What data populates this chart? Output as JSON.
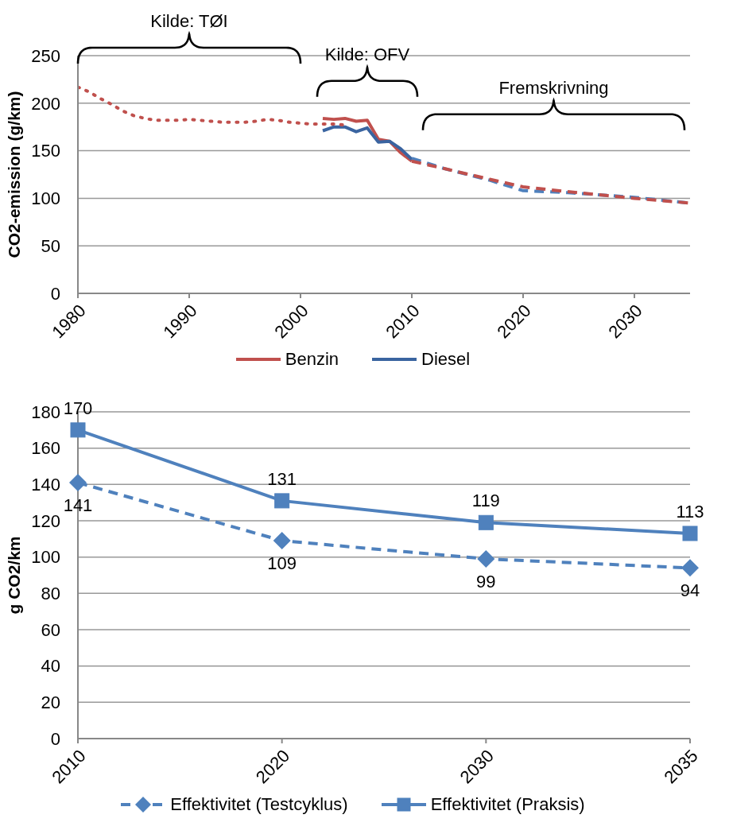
{
  "chart_data": [
    {
      "type": "line",
      "ylabel": "CO2-emission (g/km)",
      "xlim": [
        1980,
        2035
      ],
      "xticks": [
        1980,
        1990,
        2000,
        2010,
        2020,
        2030
      ],
      "ylim": [
        0,
        250
      ],
      "yticks": [
        0,
        50,
        100,
        150,
        200,
        250
      ],
      "grid": "y",
      "legend": "bottom",
      "annotations": [
        "Kilde: TØI",
        "Kilde: OFV",
        "Fremskrivning"
      ],
      "series": [
        {
          "name": "Benzin",
          "color": "#c0504d",
          "line_style": "solid",
          "x": [
            2002,
            2003,
            2004,
            2005,
            2006,
            2007,
            2008,
            2009,
            2010
          ],
          "values": [
            184,
            183,
            184,
            181,
            182,
            162,
            160,
            148,
            139
          ]
        },
        {
          "name": "Diesel",
          "color": "#3a64a0",
          "line_style": "solid",
          "x": [
            2002,
            2003,
            2004,
            2005,
            2006,
            2007,
            2008,
            2009,
            2010
          ],
          "values": [
            171,
            175,
            175,
            170,
            174,
            159,
            160,
            152,
            141
          ]
        },
        {
          "color": "#c0504d",
          "line_style": "dotted",
          "x": [
            1980,
            1981,
            1982,
            1983,
            1984,
            1985,
            1986,
            1987,
            1988,
            1989,
            1990,
            1991,
            1992,
            1993,
            1994,
            1995,
            1996,
            1997,
            1998,
            1999,
            2000,
            2001,
            2002,
            2003,
            2004
          ],
          "values": [
            217,
            212,
            205,
            199,
            192,
            187,
            184,
            182,
            182,
            182,
            183,
            182,
            181,
            180,
            180,
            180,
            181,
            183,
            182,
            180,
            179,
            178,
            178,
            178,
            177
          ]
        },
        {
          "color": "#4f81bd",
          "line_style": "dashed",
          "x": [
            2010,
            2013,
            2017,
            2020,
            2024,
            2030,
            2035
          ],
          "values": [
            142,
            131,
            119,
            108,
            106,
            101,
            95
          ]
        },
        {
          "color": "#c0504d",
          "line_style": "dashed",
          "x": [
            2010,
            2013,
            2017,
            2020,
            2024,
            2030,
            2035
          ],
          "values": [
            139,
            131,
            120,
            112,
            107,
            100,
            95
          ]
        }
      ]
    },
    {
      "type": "line",
      "ylabel": "g CO2/km",
      "categories": [
        "2010",
        "2020",
        "2030",
        "2035"
      ],
      "ylim": [
        0,
        180
      ],
      "yticks": [
        0,
        20,
        40,
        60,
        80,
        100,
        120,
        140,
        160,
        180
      ],
      "grid": "y",
      "legend": "bottom",
      "data_labels": true,
      "series": [
        {
          "name": "Effektivitet (Testcyklus)",
          "color": "#4f81bd",
          "line_style": "dashed",
          "marker": "diamond",
          "values": [
            141,
            109,
            99,
            94
          ]
        },
        {
          "name": "Effektivitet (Praksis)",
          "color": "#4f81bd",
          "line_style": "solid",
          "marker": "square",
          "values": [
            170,
            131,
            119,
            113
          ]
        }
      ]
    }
  ]
}
